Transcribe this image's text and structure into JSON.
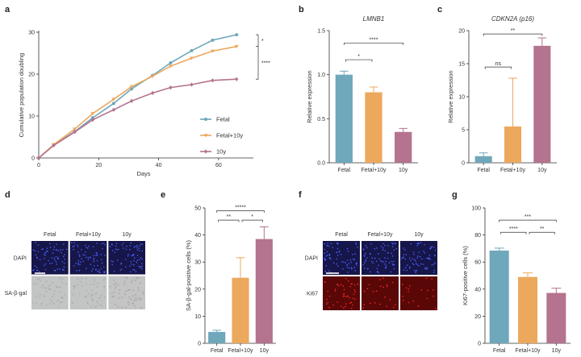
{
  "panel_labels": [
    "a",
    "b",
    "c",
    "d",
    "e",
    "f",
    "g"
  ],
  "colors": {
    "fetal": "#6fa7bb",
    "fetal10y": "#eca85d",
    "y10": "#b4738e",
    "axis": "#333333",
    "dapi_bg": "#16164a",
    "dapi_dot": "#4d62ff",
    "sagal_bg": "#c3c4c4",
    "ki67_bg": "#5a0707",
    "ki67_dot": "#ff2a2a"
  },
  "images": {
    "d": {
      "columns": [
        "Fetal",
        "Fetal+10y",
        "10y"
      ],
      "rows": [
        "DAPI",
        "SA-β-gal"
      ],
      "stains": [
        "dapi",
        "sagal"
      ]
    },
    "f": {
      "columns": [
        "Fetal",
        "Fetal+10y",
        "10y"
      ],
      "rows": [
        "DAPI",
        "Ki67"
      ],
      "stains": [
        "dapi",
        "ki67"
      ]
    }
  },
  "chart_data": [
    {
      "id": "a",
      "type": "line",
      "title": "",
      "xlabel": "Days",
      "ylabel": "Cumulative population doubling",
      "xlim": [
        0,
        70
      ],
      "ylim": [
        0,
        30
      ],
      "xticks": [
        0,
        20,
        40,
        60
      ],
      "yticks": [
        0,
        10,
        20,
        30
      ],
      "legend_position": "right",
      "series": [
        {
          "name": "Fetal",
          "color_key": "fetal",
          "marker": "circle",
          "x": [
            0,
            5,
            12,
            18,
            25,
            31,
            38,
            44,
            51,
            58,
            66
          ],
          "y": [
            0,
            3.1,
            6.3,
            9.6,
            13.0,
            16.5,
            19.7,
            22.7,
            25.6,
            28.1,
            29.4
          ]
        },
        {
          "name": "Fetal+10y",
          "color_key": "fetal10y",
          "marker": "triangle",
          "x": [
            0,
            5,
            12,
            18,
            25,
            31,
            38,
            44,
            51,
            58,
            66
          ],
          "y": [
            0,
            3.2,
            6.9,
            10.6,
            14.0,
            17.0,
            19.5,
            21.9,
            23.8,
            25.5,
            26.6
          ]
        },
        {
          "name": "10y",
          "color_key": "y10",
          "marker": "diamond",
          "x": [
            0,
            5,
            12,
            18,
            25,
            31,
            38,
            44,
            51,
            58,
            66
          ],
          "y": [
            0,
            3.0,
            6.2,
            9.1,
            11.5,
            13.6,
            15.5,
            16.8,
            17.5,
            18.5,
            18.8
          ]
        }
      ],
      "significance": [
        {
          "label": "*",
          "between": [
            "Fetal",
            "Fetal+10y"
          ]
        },
        {
          "label": "****",
          "between": [
            "Fetal+10y",
            "10y"
          ]
        }
      ]
    },
    {
      "id": "b",
      "type": "bar",
      "title": "LMNB1",
      "xlabel": "",
      "ylabel": "Relative expression",
      "categories": [
        "Fetal",
        "Fetal+10y",
        "10y"
      ],
      "values": [
        1.0,
        0.8,
        0.35
      ],
      "errors": [
        0.04,
        0.06,
        0.04
      ],
      "ylim": [
        0,
        1.5
      ],
      "yticks": [
        0,
        0.5,
        1.0,
        1.5
      ],
      "ytick_labels": [
        "0.0",
        "0.5",
        "1.0",
        "1.5"
      ],
      "significance": [
        {
          "label": "*",
          "from": 0,
          "to": 1,
          "y": 1.17
        },
        {
          "label": "****",
          "from": 0,
          "to": 2,
          "y": 1.36
        }
      ]
    },
    {
      "id": "c",
      "type": "bar",
      "title": "CDKN2A (p16)",
      "xlabel": "",
      "ylabel": "Relative expression",
      "categories": [
        "Fetal",
        "Fetal+10y",
        "10y"
      ],
      "values": [
        1.0,
        5.5,
        17.7
      ],
      "errors": [
        0.5,
        7.3,
        1.2
      ],
      "ylim": [
        0,
        20
      ],
      "yticks": [
        0,
        5,
        10,
        15,
        20
      ],
      "ytick_labels": [
        "0",
        "5",
        "10",
        "15",
        "20"
      ],
      "significance": [
        {
          "label": "ns",
          "from": 0,
          "to": 1,
          "y": 14.5
        },
        {
          "label": "**",
          "from": 0,
          "to": 2,
          "y": 19.5
        }
      ]
    },
    {
      "id": "e",
      "type": "bar",
      "title": "",
      "xlabel": "",
      "ylabel": "SA-β-gal-positive cells (%)",
      "categories": [
        "Fetal",
        "Fetal+10y",
        "10y"
      ],
      "values": [
        4.2,
        24.2,
        38.5
      ],
      "errors": [
        0.6,
        7.4,
        4.5
      ],
      "ylim": [
        0,
        50
      ],
      "yticks": [
        0,
        10,
        20,
        30,
        40,
        50
      ],
      "ytick_labels": [
        "0",
        "10",
        "20",
        "30",
        "40",
        "50"
      ],
      "significance": [
        {
          "label": "**",
          "from": 0,
          "to": 1,
          "y": 45.5
        },
        {
          "label": "*",
          "from": 1,
          "to": 2,
          "y": 45.5
        },
        {
          "label": "*****",
          "from": 0,
          "to": 2,
          "y": 49.0
        }
      ]
    },
    {
      "id": "g",
      "type": "bar",
      "title": "",
      "xlabel": "",
      "ylabel": "Ki67-positive cells (%)",
      "categories": [
        "Fetal",
        "Fetal+10y",
        "10y"
      ],
      "values": [
        68.5,
        49.0,
        37.2
      ],
      "errors": [
        1.8,
        3.0,
        3.5
      ],
      "ylim": [
        0,
        100
      ],
      "yticks": [
        0,
        20,
        40,
        60,
        80,
        100
      ],
      "ytick_labels": [
        "0",
        "20",
        "40",
        "60",
        "80",
        "100"
      ],
      "significance": [
        {
          "label": "****",
          "from": 0,
          "to": 1,
          "y": 82
        },
        {
          "label": "**",
          "from": 1,
          "to": 2,
          "y": 82
        },
        {
          "label": "***",
          "from": 0,
          "to": 2,
          "y": 91
        }
      ]
    }
  ]
}
